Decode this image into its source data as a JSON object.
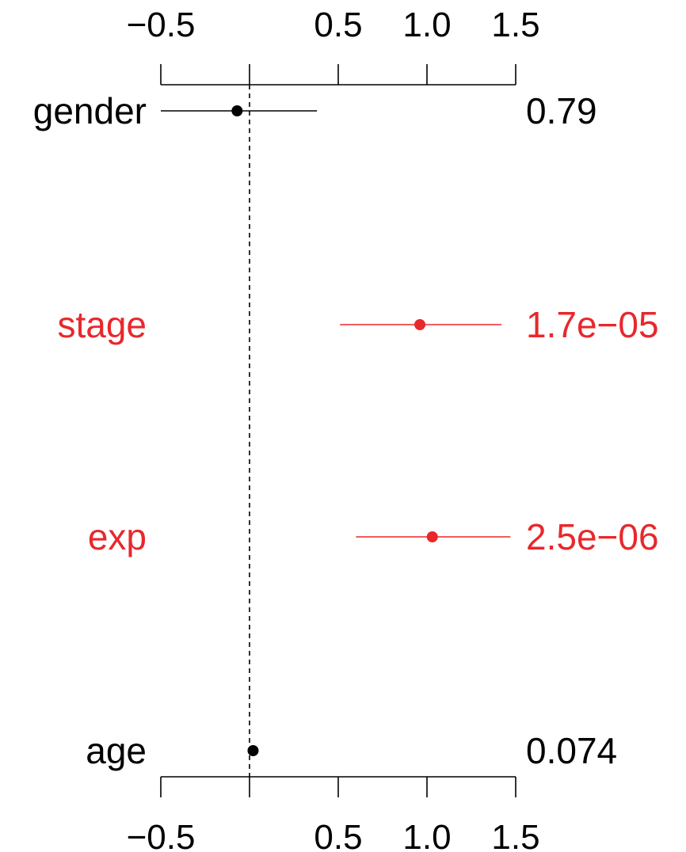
{
  "chart_data": {
    "type": "forest",
    "xlim": [
      -0.5,
      1.5
    ],
    "ticks": [
      -0.5,
      0.5,
      1.0,
      1.5
    ],
    "tick_labels": [
      "−0.5",
      "0.5",
      "1.0",
      "1.5"
    ],
    "reference_x": 0,
    "rows": [
      {
        "label": "gender",
        "estimate": -0.07,
        "lower": -0.5,
        "upper": 0.38,
        "pvalue": "0.79",
        "significant": false
      },
      {
        "label": "stage",
        "estimate": 0.96,
        "lower": 0.51,
        "upper": 1.42,
        "pvalue": "1.7e−05",
        "significant": true
      },
      {
        "label": "exp",
        "estimate": 1.03,
        "lower": 0.6,
        "upper": 1.47,
        "pvalue": "2.5e−06",
        "significant": true
      },
      {
        "label": "age",
        "estimate": 0.02,
        "lower": 0.0,
        "upper": 0.04,
        "pvalue": "0.074",
        "significant": false
      }
    ],
    "colors": {
      "significant": "#e8282c",
      "normal": "#000000"
    },
    "grid": false
  }
}
